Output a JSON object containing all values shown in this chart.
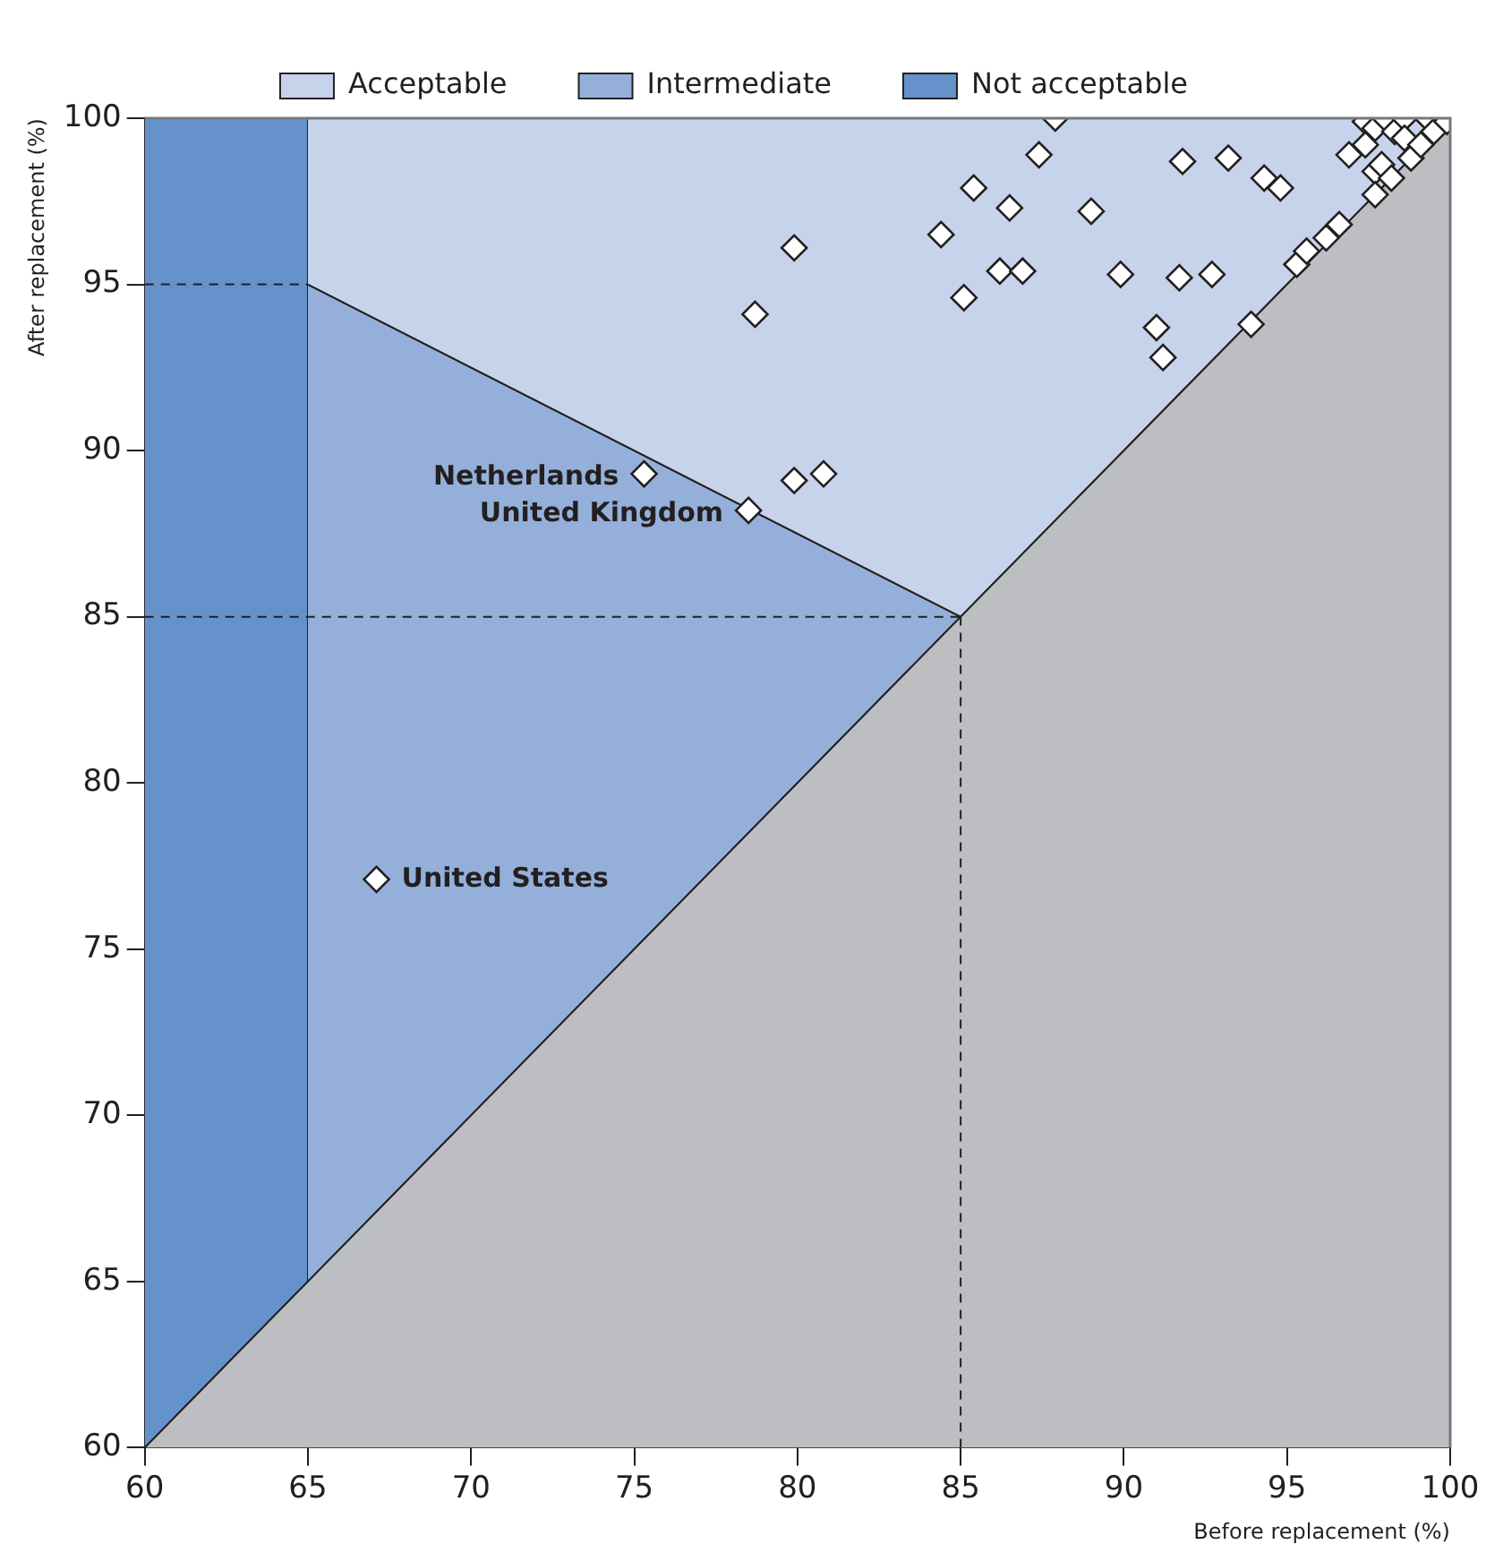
{
  "chart_data": {
    "type": "scatter",
    "xlabel": "Before replacement (%)",
    "ylabel": "After replacement (%)",
    "xlim": [
      60,
      100
    ],
    "ylim": [
      60,
      100
    ],
    "xticks": [
      60,
      65,
      70,
      75,
      80,
      85,
      90,
      95,
      100
    ],
    "yticks": [
      60,
      65,
      70,
      75,
      80,
      85,
      90,
      95,
      100
    ],
    "grid": false,
    "legend": "top",
    "series": [
      {
        "type": "area",
        "color": "#bdbec2",
        "marker": "none",
        "x": [
          60,
          100,
          100
        ],
        "values": [
          60,
          100,
          60
        ]
      },
      {
        "type": "area",
        "name": "Acceptable",
        "color": "#c6d3ea",
        "marker": "none",
        "x": [
          65,
          100,
          85,
          65
        ],
        "values": [
          100,
          100,
          85,
          95
        ]
      },
      {
        "type": "area",
        "name": "Intermediate",
        "color": "#94b0da",
        "marker": "none",
        "x": [
          65,
          85,
          65
        ],
        "values": [
          95,
          85,
          65
        ]
      },
      {
        "type": "area",
        "name": "Not acceptable",
        "color": "#6592cb",
        "marker": "none",
        "x": [
          60,
          65,
          65,
          60
        ],
        "values": [
          60,
          65,
          100,
          100
        ]
      },
      {
        "type": "line",
        "color": "#231f20",
        "line_style": "dashed",
        "x": [
          60,
          65
        ],
        "values": [
          95,
          95
        ]
      },
      {
        "type": "line",
        "color": "#231f20",
        "line_style": "dashed",
        "x": [
          60,
          85
        ],
        "values": [
          85,
          85
        ]
      },
      {
        "type": "line",
        "color": "#231f20",
        "line_style": "dashed",
        "x": [
          85,
          85
        ],
        "values": [
          60,
          85
        ]
      },
      {
        "type": "scatter",
        "color": "#ffffff",
        "marker": "diamond",
        "x": [
          87.9,
          87.4,
          85.4,
          86.5,
          89.0,
          84.4,
          79.9,
          86.2,
          86.9,
          85.1,
          78.7,
          79.9,
          80.8,
          78.5,
          75.3,
          67.1,
          91.8,
          93.2,
          94.3,
          94.8,
          89.9,
          91.7,
          92.7,
          91.0,
          91.2,
          93.9,
          95.3,
          95.6,
          96.2,
          96.6,
          96.9,
          97.7,
          97.9,
          98.2,
          97.7,
          97.4,
          97.4,
          97.7,
          98.0,
          98.3,
          98.6,
          98.6,
          98.8,
          99.1,
          99.3,
          99.5,
          99.9
        ],
        "values": [
          100.0,
          98.9,
          97.9,
          97.3,
          97.2,
          96.5,
          96.1,
          95.4,
          95.4,
          94.6,
          94.1,
          89.1,
          89.3,
          88.2,
          89.3,
          77.1,
          98.7,
          98.8,
          98.2,
          97.9,
          95.3,
          95.2,
          95.3,
          93.7,
          92.8,
          93.8,
          95.6,
          96.0,
          96.4,
          96.8,
          98.9,
          98.4,
          98.6,
          98.2,
          97.7,
          99.9,
          99.2,
          99.7,
          100.0,
          99.6,
          100.0,
          99.4,
          98.8,
          99.2,
          100.0,
          99.6,
          99.9
        ]
      }
    ],
    "annotations": [
      {
        "text": "Netherlands",
        "x": 75.3,
        "y": 89.3
      },
      {
        "text": "United Kingdom",
        "x": 78.5,
        "y": 88.2
      },
      {
        "text": "United States",
        "x": 67.1,
        "y": 77.1
      }
    ]
  }
}
